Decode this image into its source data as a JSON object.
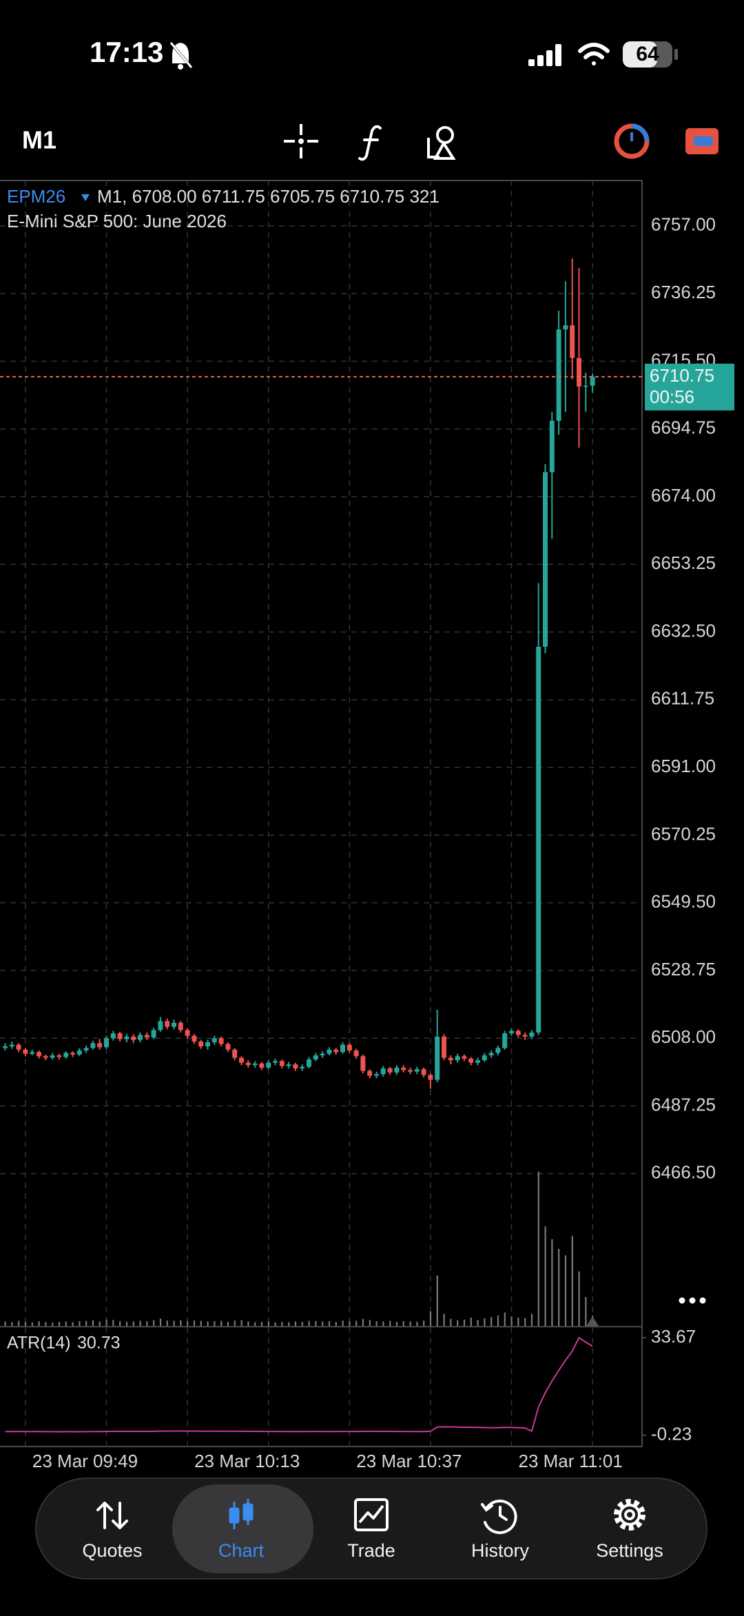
{
  "status_bar": {
    "time": "17:13",
    "battery": "64"
  },
  "toolbar": {
    "timeframe": "M1"
  },
  "chart_data": {
    "type": "candlestick",
    "symbol": "EPM26",
    "ohlc_label": "M1, 6708.00 6711.75 6705.75 6710.75 321",
    "description": "E-Mini S&P 500: June 2026",
    "up_color": "#26a69a",
    "down_color": "#ef5350",
    "volume_color": "#7a7a7a",
    "price_line_color": "#e8665c",
    "grid": true,
    "ylim": [
      6419.8,
      6770.9
    ],
    "yticks": [
      {
        "value": 6757,
        "label": "6757.00"
      },
      6736.25,
      {
        "value": 6715.5,
        "label": "6715.50"
      },
      6694.75,
      {
        "value": 6674,
        "label": "6674.00"
      },
      6653.25,
      {
        "value": 6632.5,
        "label": "6632.50"
      },
      6611.75,
      {
        "value": 6591,
        "label": "6591.00"
      },
      6570.25,
      {
        "value": 6549.5,
        "label": "6549.50"
      },
      6528.75,
      {
        "value": 6508,
        "label": "6508.00"
      },
      6487.25,
      {
        "value": 6466.5,
        "label": "6466.50"
      }
    ],
    "xticks": [
      {
        "value": 3,
        "label": "23 Mar 09:49"
      },
      {
        "value": 15,
        "label": null
      },
      {
        "value": 27,
        "label": "23 Mar 10:13"
      },
      {
        "value": 39,
        "label": null
      },
      {
        "value": 51,
        "label": "23 Mar 10:37"
      },
      {
        "value": 63,
        "label": null
      },
      {
        "value": 75,
        "label": "23 Mar 11:01"
      },
      {
        "value": 87,
        "label": null
      }
    ],
    "open": [
      6505.0,
      6505.5,
      6506.0,
      6504.5,
      6503.25,
      6503.75,
      6502.5,
      6502.0,
      6502.75,
      6502.25,
      6503.5,
      6503.0,
      6504.25,
      6505.0,
      6506.5,
      6505.25,
      6508.0,
      6509.5,
      6507.75,
      6508.5,
      6507.5,
      6509.0,
      6508.25,
      6510.5,
      6513.25,
      6511.5,
      6512.75,
      6510.5,
      6508.75,
      6507.0,
      6505.5,
      6506.75,
      6508.0,
      6506.25,
      6504.5,
      6502.0,
      6500.5,
      6499.75,
      6500.25,
      6499.0,
      6500.5,
      6501.0,
      6499.5,
      6500.0,
      6498.75,
      6499.25,
      6501.5,
      6502.75,
      6503.25,
      6504.5,
      6503.75,
      6506.0,
      6504.25,
      6502.5,
      6498.0,
      6496.5,
      6497.0,
      6498.75,
      6497.5,
      6499.0,
      6498.25,
      6497.75,
      6498.5,
      6496.75,
      6495.25,
      6508.5,
      6502.0,
      6501.25,
      6502.5,
      6501.75,
      6500.5,
      6501.25,
      6502.75,
      6503.5,
      6505.0,
      6509.5,
      6510.25,
      6509.0,
      6508.5,
      6509.75,
      6628.0,
      6681.5,
      6697.25,
      6725.25,
      6726.5,
      6716.5,
      6707.75,
      6708.0
    ],
    "high": [
      6506.5,
      6507.0,
      6506.5,
      6505.0,
      6504.5,
      6504.25,
      6503.0,
      6503.5,
      6503.25,
      6504.0,
      6504.0,
      6505.0,
      6505.75,
      6507.25,
      6507.75,
      6508.75,
      6510.25,
      6510.0,
      6509.25,
      6509.25,
      6509.75,
      6509.75,
      6511.25,
      6514.5,
      6514.0,
      6513.75,
      6513.25,
      6511.0,
      6509.25,
      6507.5,
      6507.5,
      6508.75,
      6508.5,
      6506.75,
      6505.0,
      6502.5,
      6501.25,
      6501.0,
      6500.75,
      6501.25,
      6501.75,
      6501.5,
      6500.75,
      6500.5,
      6500.0,
      6502.25,
      6503.5,
      6504.0,
      6505.25,
      6505.0,
      6506.75,
      6506.5,
      6504.75,
      6503.0,
      6498.5,
      6497.75,
      6499.5,
      6499.25,
      6499.75,
      6499.75,
      6499.0,
      6499.25,
      6499.0,
      6497.25,
      6516.75,
      6509.25,
      6502.75,
      6503.25,
      6503.0,
      6502.25,
      6502.0,
      6503.5,
      6504.25,
      6505.75,
      6510.25,
      6511.0,
      6510.75,
      6509.75,
      6510.5,
      6647.5,
      6684.0,
      6700.0,
      6731.0,
      6740.0,
      6747.0,
      6744.0,
      6712.0,
      6711.75
    ],
    "low": [
      6504.25,
      6504.75,
      6503.75,
      6502.5,
      6502.75,
      6501.75,
      6501.25,
      6501.5,
      6501.5,
      6501.75,
      6502.25,
      6502.5,
      6503.5,
      6504.5,
      6504.5,
      6504.75,
      6507.25,
      6507.0,
      6506.75,
      6506.5,
      6506.75,
      6507.5,
      6507.75,
      6510.0,
      6510.75,
      6510.75,
      6509.75,
      6508.0,
      6506.25,
      6504.75,
      6504.5,
      6506.0,
      6505.5,
      6503.75,
      6501.25,
      6499.75,
      6499.0,
      6499.0,
      6498.25,
      6498.5,
      6499.75,
      6498.75,
      6498.75,
      6498.0,
      6498.0,
      6498.75,
      6501.0,
      6502.0,
      6502.75,
      6503.0,
      6503.25,
      6503.5,
      6501.75,
      6497.25,
      6495.75,
      6495.75,
      6496.25,
      6496.75,
      6496.75,
      6497.5,
      6497.0,
      6497.0,
      6496.0,
      6492.5,
      6494.5,
      6501.25,
      6500.0,
      6500.5,
      6501.0,
      6499.75,
      6499.75,
      6500.75,
      6502.0,
      6502.75,
      6504.5,
      6508.75,
      6508.25,
      6507.5,
      6507.75,
      6509.0,
      6626.0,
      6661.0,
      6693.0,
      6700.0,
      6710.0,
      6689.0,
      6700.0,
      6705.75
    ],
    "close": [
      6505.5,
      6506.0,
      6504.5,
      6503.25,
      6503.75,
      6502.5,
      6502.0,
      6502.75,
      6502.25,
      6503.5,
      6503.0,
      6504.25,
      6505.0,
      6506.5,
      6505.25,
      6508.0,
      6509.5,
      6507.75,
      6508.5,
      6507.5,
      6509.0,
      6508.25,
      6510.5,
      6513.25,
      6511.5,
      6512.75,
      6510.5,
      6508.75,
      6507.0,
      6505.5,
      6506.75,
      6508.0,
      6506.25,
      6504.5,
      6502.0,
      6500.5,
      6499.75,
      6500.25,
      6499.0,
      6500.5,
      6501.0,
      6499.5,
      6500.0,
      6498.75,
      6499.25,
      6501.5,
      6502.75,
      6503.25,
      6504.5,
      6503.75,
      6506.0,
      6504.25,
      6502.5,
      6498.0,
      6496.5,
      6497.0,
      6498.75,
      6497.5,
      6499.0,
      6498.25,
      6497.75,
      6498.5,
      6496.75,
      6495.25,
      6508.5,
      6502.0,
      6501.25,
      6502.5,
      6501.75,
      6500.5,
      6501.25,
      6502.75,
      6503.5,
      6505.0,
      6509.5,
      6510.25,
      6509.0,
      6508.5,
      6509.75,
      6628.0,
      6681.5,
      6697.25,
      6725.25,
      6726.5,
      6716.5,
      6707.75,
      6708.0,
      6710.75
    ],
    "volume": [
      140,
      120,
      160,
      130,
      110,
      150,
      120,
      100,
      130,
      140,
      120,
      150,
      160,
      180,
      140,
      200,
      190,
      150,
      130,
      140,
      160,
      150,
      180,
      230,
      170,
      160,
      180,
      150,
      170,
      160,
      140,
      150,
      160,
      130,
      170,
      180,
      140,
      120,
      130,
      140,
      110,
      130,
      120,
      140,
      130,
      160,
      150,
      140,
      150,
      130,
      170,
      150,
      160,
      220,
      190,
      150,
      140,
      160,
      130,
      150,
      140,
      130,
      170,
      450,
      1570,
      380,
      220,
      180,
      200,
      260,
      190,
      240,
      280,
      330,
      420,
      300,
      260,
      250,
      380,
      4800,
      3100,
      2700,
      2400,
      2200,
      2800,
      1700,
      900,
      321
    ],
    "bar_timer": "00:56",
    "indicator": {
      "name": "ATR(14)",
      "value": 30.73,
      "color": "#c93a95",
      "ylim": [
        -4.16,
        37.24
      ],
      "yticks": [
        33.67,
        -0.23
      ],
      "values": [
        1.05,
        1.04,
        1.06,
        1.05,
        1.03,
        1.04,
        1.02,
        1.01,
        1.0,
        1.02,
        1.01,
        1.0,
        1.01,
        1.03,
        1.05,
        1.08,
        1.1,
        1.12,
        1.11,
        1.1,
        1.09,
        1.1,
        1.12,
        1.18,
        1.2,
        1.22,
        1.21,
        1.2,
        1.19,
        1.18,
        1.17,
        1.18,
        1.16,
        1.15,
        1.16,
        1.14,
        1.12,
        1.1,
        1.09,
        1.08,
        1.07,
        1.06,
        1.05,
        1.04,
        1.04,
        1.06,
        1.07,
        1.06,
        1.05,
        1.06,
        1.08,
        1.07,
        1.06,
        1.1,
        1.12,
        1.11,
        1.1,
        1.09,
        1.08,
        1.07,
        1.06,
        1.05,
        1.04,
        1.15,
        2.6,
        2.7,
        2.65,
        2.6,
        2.55,
        2.5,
        2.5,
        2.45,
        2.4,
        2.4,
        2.5,
        2.45,
        2.4,
        2.3,
        1.2,
        9.6,
        14.5,
        18.6,
        22.3,
        25.8,
        29.0,
        33.67,
        32.1,
        30.73
      ]
    }
  },
  "nav": {
    "items": [
      "Quotes",
      "Chart",
      "Trade",
      "History",
      "Settings"
    ],
    "selected": 1
  }
}
